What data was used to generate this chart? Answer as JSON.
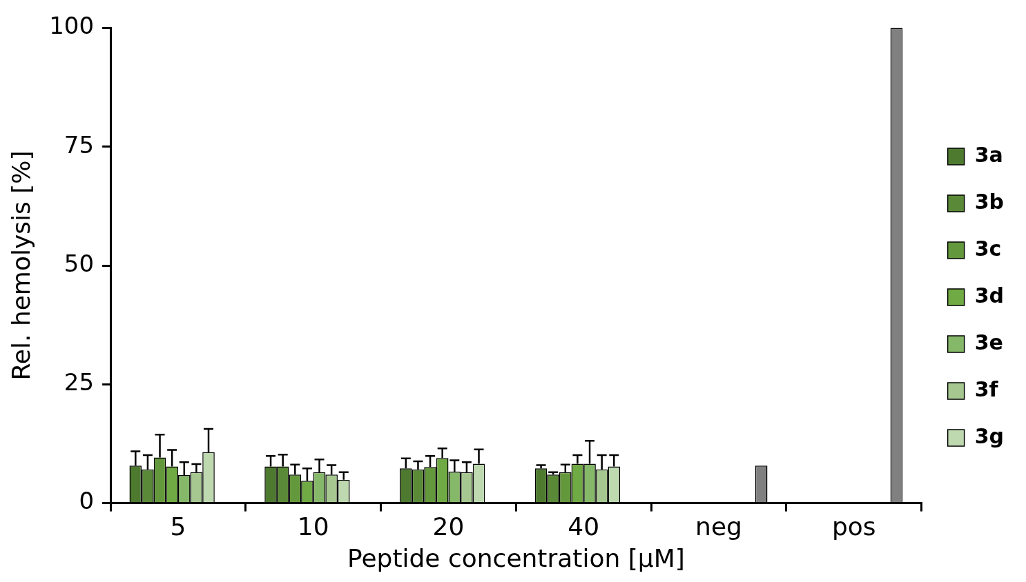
{
  "chart_data": {
    "type": "bar",
    "xlabel": "Peptide concentration [µM]",
    "ylabel": "Rel. hemolysis [%]",
    "categories": [
      "5",
      "10",
      "20",
      "40",
      "neg",
      "pos"
    ],
    "series": [
      {
        "name": "3a",
        "color": "#4e7a30",
        "values": [
          7.9,
          7.7,
          7.3,
          7.3,
          null,
          null
        ],
        "errors": [
          3.0,
          2.2,
          2.1,
          0.7,
          null,
          null
        ]
      },
      {
        "name": "3b",
        "color": "#5a8a38",
        "values": [
          7.1,
          7.7,
          7.1,
          6.0,
          null,
          null
        ],
        "errors": [
          3.0,
          2.5,
          1.7,
          0.5,
          null,
          null
        ]
      },
      {
        "name": "3c",
        "color": "#64983c",
        "values": [
          9.6,
          6.0,
          7.6,
          6.5,
          null,
          null
        ],
        "errors": [
          4.8,
          2.1,
          2.3,
          1.6,
          null,
          null
        ]
      },
      {
        "name": "3d",
        "color": "#70aa44",
        "values": [
          7.7,
          4.7,
          9.5,
          8.3,
          null,
          null
        ],
        "errors": [
          3.5,
          2.6,
          2.0,
          1.8,
          null,
          null
        ]
      },
      {
        "name": "3e",
        "color": "#86b86a",
        "values": [
          5.9,
          6.5,
          6.6,
          8.3,
          null,
          null
        ],
        "errors": [
          2.7,
          2.7,
          2.4,
          4.8,
          null,
          null
        ]
      },
      {
        "name": "3f",
        "color": "#a6c890",
        "values": [
          6.5,
          6.0,
          6.5,
          7.1,
          null,
          null
        ],
        "errors": [
          1.7,
          2.0,
          2.1,
          3.0,
          null,
          null
        ]
      },
      {
        "name": "3g",
        "color": "#bed8b0",
        "values": [
          10.7,
          4.9,
          8.3,
          7.7,
          null,
          null
        ],
        "errors": [
          4.9,
          1.6,
          3.0,
          2.4,
          null,
          null
        ]
      },
      {
        "color": "#808080",
        "values": [
          null,
          null,
          null,
          null,
          7.9,
          100
        ]
      }
    ],
    "ylim": [
      0,
      100
    ],
    "yticks": [
      0,
      25,
      50,
      75,
      100
    ],
    "grid": false,
    "legend": "right"
  }
}
